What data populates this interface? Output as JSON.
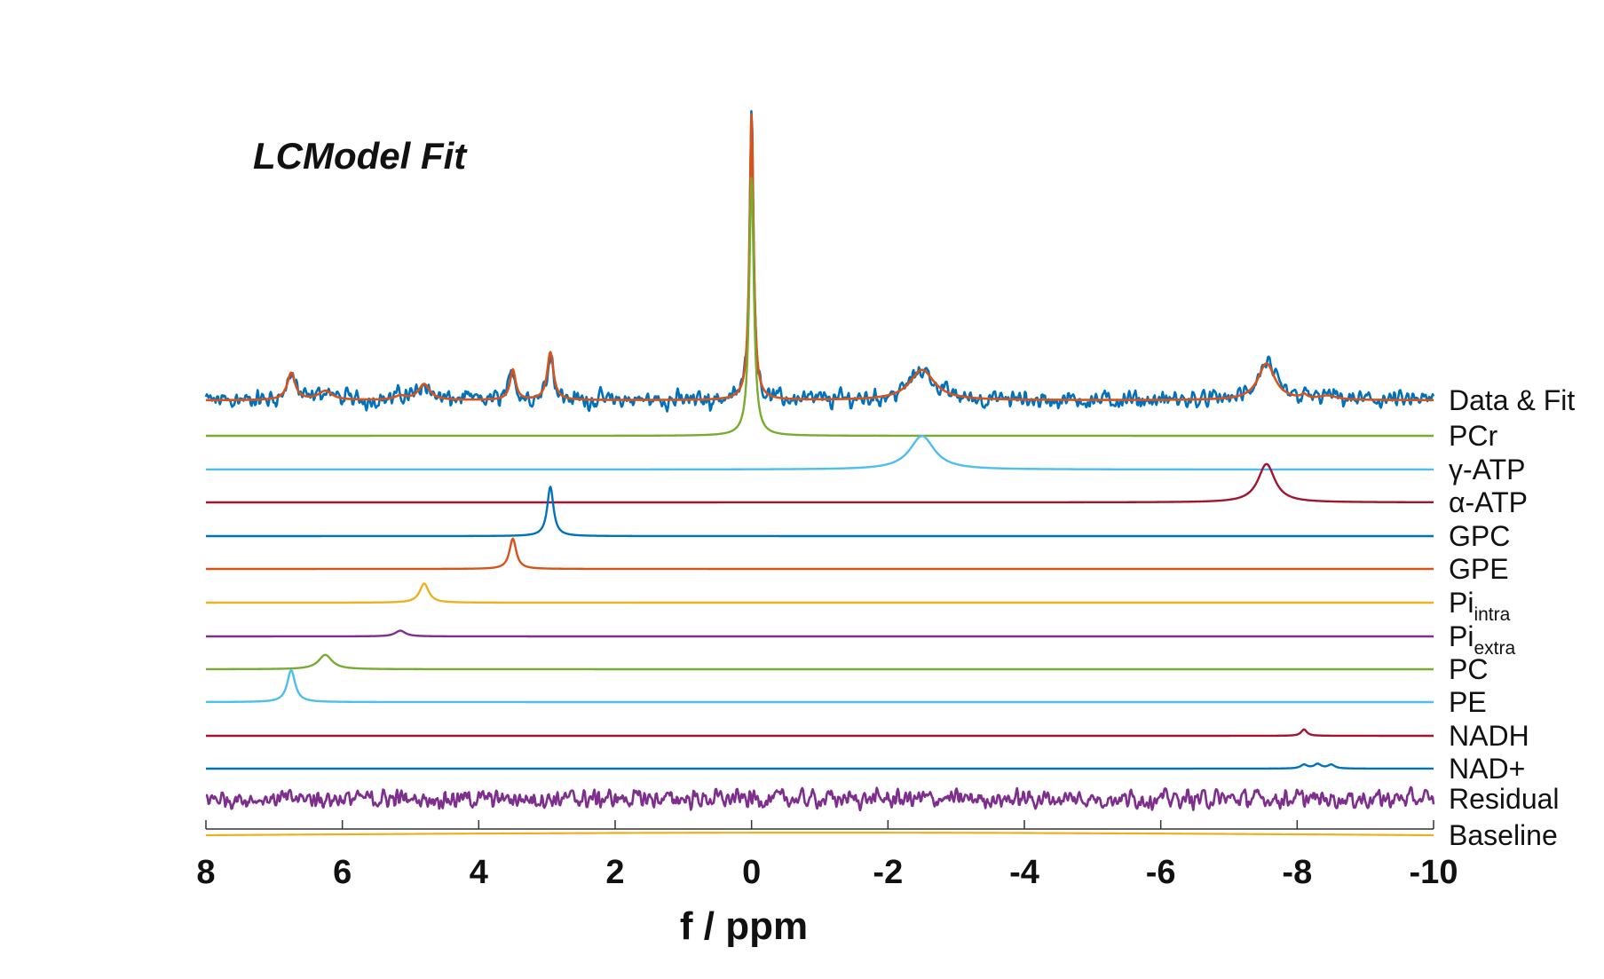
{
  "chart_data": {
    "type": "line",
    "title": "LCModel Fit",
    "xlabel": "f / ppm",
    "ylabel": "",
    "xlim": [
      8,
      -10
    ],
    "x_reversed": true,
    "xticks": [
      8,
      6,
      4,
      2,
      0,
      -2,
      -4,
      -6,
      -8,
      -10
    ],
    "grid": false,
    "series": [
      {
        "name": "Data & Fit",
        "label_main": "Data & Fit",
        "label_sub": "",
        "kind": "datafit",
        "color": "#0072BD",
        "fit_color": "#D95319",
        "peaks": [
          {
            "ppm": 6.75,
            "height": 0.85,
            "width": 0.07
          },
          {
            "ppm": 6.25,
            "height": 0.28,
            "width": 0.12
          },
          {
            "ppm": 4.8,
            "height": 0.5,
            "width": 0.1
          },
          {
            "ppm": 5.15,
            "height": 0.12,
            "width": 0.1
          },
          {
            "ppm": 3.5,
            "height": 0.95,
            "width": 0.05
          },
          {
            "ppm": 2.95,
            "height": 1.5,
            "width": 0.055
          },
          {
            "ppm": 0.0,
            "height": 9.0,
            "width": 0.035
          },
          {
            "ppm": -2.5,
            "height": 0.95,
            "width": 0.22
          },
          {
            "ppm": -7.55,
            "height": 1.15,
            "width": 0.15
          },
          {
            "ppm": -8.1,
            "height": 0.12,
            "width": 0.05
          },
          {
            "ppm": -8.45,
            "height": 0.12,
            "width": 0.15
          }
        ]
      },
      {
        "name": "PCr",
        "label_main": "PCr",
        "label_sub": "",
        "kind": "lorentz",
        "color": "#77AC30",
        "peaks": [
          {
            "ppm": 0.0,
            "height": 8.1,
            "width": 0.04
          }
        ]
      },
      {
        "name": "γ-ATP",
        "label_main": "γ-ATP",
        "label_sub": "",
        "kind": "lorentz",
        "color": "#4DBEEE",
        "peaks": [
          {
            "ppm": -2.5,
            "height": 1.05,
            "width": 0.22
          }
        ]
      },
      {
        "name": "α-ATP",
        "label_main": "α-ATP",
        "label_sub": "",
        "kind": "lorentz",
        "color": "#A2142F",
        "peaks": [
          {
            "ppm": -7.55,
            "height": 1.2,
            "width": 0.15
          }
        ]
      },
      {
        "name": "GPC",
        "label_main": "GPC",
        "label_sub": "",
        "kind": "lorentz",
        "color": "#0072BD",
        "peaks": [
          {
            "ppm": 2.95,
            "height": 1.55,
            "width": 0.055
          }
        ]
      },
      {
        "name": "GPE",
        "label_main": "GPE",
        "label_sub": "",
        "kind": "lorentz",
        "color": "#D95319",
        "peaks": [
          {
            "ppm": 3.5,
            "height": 0.95,
            "width": 0.06
          }
        ]
      },
      {
        "name": "Pi_intra",
        "label_main": "Pi",
        "label_sub": "intra",
        "kind": "lorentz",
        "color": "#EDB120",
        "peaks": [
          {
            "ppm": 4.8,
            "height": 0.6,
            "width": 0.08
          }
        ]
      },
      {
        "name": "Pi_extra",
        "label_main": "Pi",
        "label_sub": "extra",
        "kind": "lorentz",
        "color": "#7E2F8E",
        "peaks": [
          {
            "ppm": 5.15,
            "height": 0.18,
            "width": 0.09
          }
        ]
      },
      {
        "name": "PC",
        "label_main": "PC",
        "label_sub": "",
        "kind": "lorentz",
        "color": "#77AC30",
        "peaks": [
          {
            "ppm": 6.25,
            "height": 0.45,
            "width": 0.12
          }
        ]
      },
      {
        "name": "PE",
        "label_main": "PE",
        "label_sub": "",
        "kind": "lorentz",
        "color": "#4DBEEE",
        "peaks": [
          {
            "ppm": 6.75,
            "height": 1.0,
            "width": 0.07
          }
        ]
      },
      {
        "name": "NADH",
        "label_main": "NADH",
        "label_sub": "",
        "kind": "lorentz",
        "color": "#A2142F",
        "peaks": [
          {
            "ppm": -8.1,
            "height": 0.2,
            "width": 0.05
          }
        ]
      },
      {
        "name": "NAD+",
        "label_main": "NAD+",
        "label_sub": "",
        "kind": "lorentz",
        "color": "#0072BD",
        "peaks": [
          {
            "ppm": -8.1,
            "height": 0.12,
            "width": 0.06
          },
          {
            "ppm": -8.3,
            "height": 0.14,
            "width": 0.06
          },
          {
            "ppm": -8.5,
            "height": 0.12,
            "width": 0.06
          }
        ]
      },
      {
        "name": "Residual",
        "label_main": "Residual",
        "label_sub": "",
        "kind": "noise",
        "color": "#7E2F8E",
        "peaks": []
      },
      {
        "name": "Baseline",
        "label_main": "Baseline",
        "label_sub": "",
        "kind": "baseline",
        "color": "#EDB120",
        "peaks": []
      }
    ]
  }
}
